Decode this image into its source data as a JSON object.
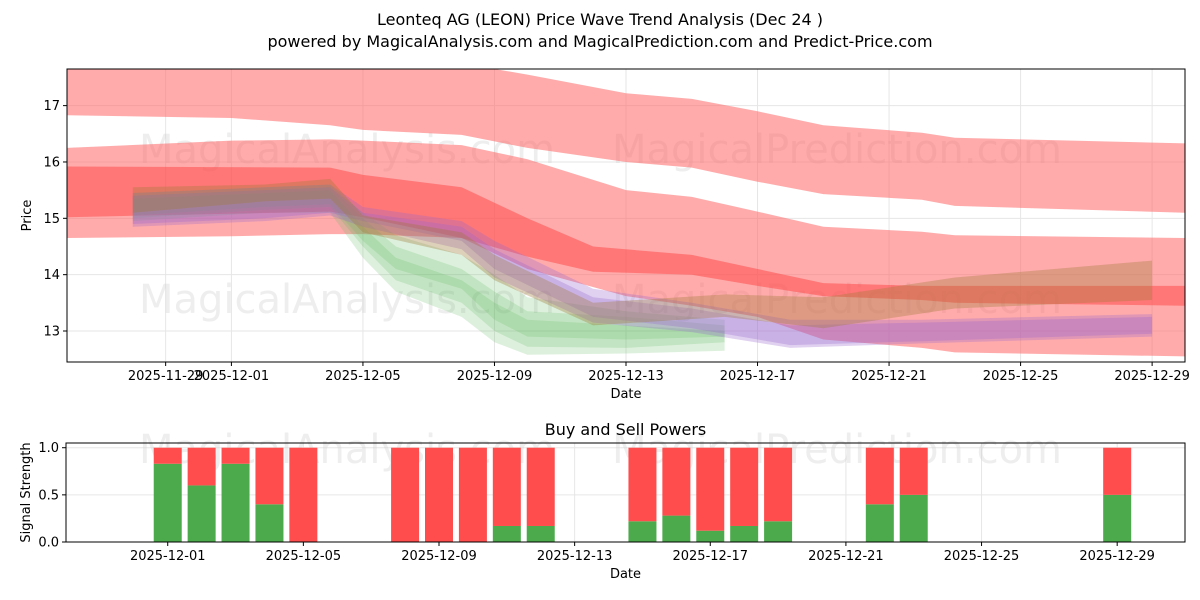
{
  "figure": {
    "title_line1": "Leonteq AG (LEON) Price Wave Trend Analysis (Dec 24 )",
    "title_line2": "powered by MagicalAnalysis.com and MagicalPrediction.com and Predict-Price.com",
    "watermarks": [
      "MagicalAnalysis.com",
      "MagicalPrediction.com"
    ]
  },
  "chart_data": [
    {
      "type": "area",
      "title": "",
      "xlabel": "Date",
      "ylabel": "Price",
      "x_range": [
        "2025-11-26",
        "2025-12-30"
      ],
      "ylim": [
        12.45,
        17.65
      ],
      "grid": true,
      "x_ticks": [
        {
          "date": "2025-11-29",
          "label": "2025-11-29"
        },
        {
          "date": "2025-12-01",
          "label": "2025-12-01"
        },
        {
          "date": "2025-12-05",
          "label": "2025-12-05"
        },
        {
          "date": "2025-12-09",
          "label": "2025-12-09"
        },
        {
          "date": "2025-12-13",
          "label": "2025-12-13"
        },
        {
          "date": "2025-12-17",
          "label": "2025-12-17"
        },
        {
          "date": "2025-12-21",
          "label": "2025-12-21"
        },
        {
          "date": "2025-12-25",
          "label": "2025-12-25"
        },
        {
          "date": "2025-12-29",
          "label": "2025-12-29"
        }
      ],
      "y_ticks": [
        {
          "value": 13,
          "label": "13"
        },
        {
          "value": 14,
          "label": "14"
        },
        {
          "value": 15,
          "label": "15"
        },
        {
          "value": 16,
          "label": "16"
        },
        {
          "value": 17,
          "label": "17"
        }
      ],
      "bands": [
        {
          "name": "upper-band",
          "color": "#ff6666",
          "opacity": 0.55,
          "x": [
            "2025-11-26",
            "2025-12-01",
            "2025-12-04",
            "2025-12-05",
            "2025-12-08",
            "2025-12-10",
            "2025-12-13",
            "2025-12-15",
            "2025-12-17",
            "2025-12-19",
            "2025-12-22",
            "2025-12-23",
            "2025-12-30"
          ],
          "upper": [
            17.75,
            17.75,
            17.75,
            17.75,
            17.75,
            17.55,
            17.22,
            17.12,
            16.9,
            16.65,
            16.52,
            16.43,
            16.33
          ],
          "lower": [
            16.83,
            16.78,
            16.65,
            16.57,
            16.48,
            16.25,
            16.0,
            15.9,
            15.65,
            15.43,
            15.33,
            15.22,
            15.1
          ]
        },
        {
          "name": "middle-band",
          "color": "#ff6666",
          "opacity": 0.55,
          "x": [
            "2025-11-26",
            "2025-12-01",
            "2025-12-04",
            "2025-12-05",
            "2025-12-08",
            "2025-12-10",
            "2025-12-13",
            "2025-12-15",
            "2025-12-17",
            "2025-12-19",
            "2025-12-22",
            "2025-12-23",
            "2025-12-30"
          ],
          "upper": [
            16.25,
            16.38,
            16.4,
            16.38,
            16.3,
            16.05,
            15.5,
            15.38,
            15.12,
            14.85,
            14.76,
            14.7,
            14.65
          ],
          "lower": [
            14.65,
            14.68,
            14.72,
            14.72,
            14.65,
            14.1,
            13.62,
            13.45,
            13.25,
            12.85,
            12.7,
            12.62,
            12.55
          ]
        },
        {
          "name": "red-trend-band",
          "color": "#ff4444",
          "opacity": 0.5,
          "x": [
            "2025-11-26",
            "2025-12-04",
            "2025-12-05",
            "2025-12-08",
            "2025-12-10",
            "2025-12-12",
            "2025-12-15",
            "2025-12-17",
            "2025-12-19",
            "2025-12-22",
            "2025-12-23",
            "2025-12-30"
          ],
          "upper": [
            15.92,
            15.9,
            15.77,
            15.55,
            15.0,
            14.5,
            14.35,
            14.1,
            13.85,
            13.8,
            13.8,
            13.8
          ],
          "lower": [
            15.02,
            15.12,
            15.02,
            14.65,
            14.32,
            14.05,
            14.0,
            13.8,
            13.62,
            13.55,
            13.5,
            13.45
          ]
        },
        {
          "name": "green-scenario-1",
          "color": "#66bb66",
          "opacity": 0.22,
          "x": [
            "2025-11-28",
            "2025-12-02",
            "2025-12-04",
            "2025-12-05",
            "2025-12-06",
            "2025-12-08",
            "2025-12-09",
            "2025-12-10",
            "2025-12-13",
            "2025-12-16"
          ],
          "upper": [
            15.4,
            15.5,
            15.55,
            15.0,
            14.5,
            14.1,
            13.7,
            13.35,
            13.25,
            13.1
          ],
          "lower": [
            15.0,
            15.15,
            15.2,
            14.5,
            13.9,
            13.5,
            13.0,
            12.72,
            12.7,
            12.8
          ]
        },
        {
          "name": "green-scenario-2",
          "color": "#66bb66",
          "opacity": 0.22,
          "x": [
            "2025-11-28",
            "2025-12-02",
            "2025-12-04",
            "2025-12-05",
            "2025-12-06",
            "2025-12-08",
            "2025-12-09",
            "2025-12-10",
            "2025-12-13",
            "2025-12-16"
          ],
          "upper": [
            15.35,
            15.45,
            15.5,
            14.85,
            14.3,
            13.9,
            13.5,
            13.2,
            13.1,
            13.0
          ],
          "lower": [
            14.95,
            15.1,
            15.1,
            14.3,
            13.7,
            13.25,
            12.8,
            12.58,
            12.6,
            12.65
          ]
        },
        {
          "name": "green-scenario-3",
          "color": "#66bb66",
          "opacity": 0.22,
          "x": [
            "2025-11-28",
            "2025-12-02",
            "2025-12-04",
            "2025-12-05",
            "2025-12-06",
            "2025-12-08",
            "2025-12-09",
            "2025-12-10",
            "2025-12-13",
            "2025-12-16"
          ],
          "upper": [
            15.45,
            15.55,
            15.6,
            15.1,
            14.7,
            14.35,
            14.0,
            13.6,
            13.35,
            13.2
          ],
          "lower": [
            15.05,
            15.2,
            15.25,
            14.6,
            14.1,
            13.75,
            13.2,
            12.9,
            12.85,
            12.9
          ]
        },
        {
          "name": "purple-scenario-1",
          "color": "#9966cc",
          "opacity": 0.3,
          "x": [
            "2025-11-28",
            "2025-12-02",
            "2025-12-04",
            "2025-12-05",
            "2025-12-08",
            "2025-12-09",
            "2025-12-12",
            "2025-12-15",
            "2025-12-18",
            "2025-12-22",
            "2025-12-29"
          ],
          "upper": [
            15.45,
            15.55,
            15.6,
            15.2,
            14.95,
            14.6,
            13.75,
            13.5,
            13.2,
            13.2,
            13.3
          ],
          "lower": [
            14.9,
            15.0,
            15.1,
            14.95,
            14.6,
            14.1,
            13.25,
            13.05,
            12.75,
            12.82,
            12.95
          ]
        },
        {
          "name": "purple-scenario-2",
          "color": "#9966cc",
          "opacity": 0.3,
          "x": [
            "2025-11-28",
            "2025-12-02",
            "2025-12-04",
            "2025-12-05",
            "2025-12-08",
            "2025-12-09",
            "2025-12-12",
            "2025-12-15",
            "2025-12-18",
            "2025-12-22",
            "2025-12-29"
          ],
          "upper": [
            15.4,
            15.5,
            15.55,
            15.1,
            14.85,
            14.45,
            13.6,
            13.4,
            13.1,
            13.15,
            13.25
          ],
          "lower": [
            14.85,
            14.95,
            15.05,
            14.85,
            14.45,
            13.95,
            13.15,
            12.98,
            12.7,
            12.78,
            12.9
          ]
        },
        {
          "name": "brown-scenario",
          "color": "#a07a3a",
          "opacity": 0.35,
          "x": [
            "2025-11-28",
            "2025-12-02",
            "2025-12-04",
            "2025-12-05",
            "2025-12-08",
            "2025-12-09",
            "2025-12-12",
            "2025-12-16",
            "2025-12-19",
            "2025-12-23",
            "2025-12-29"
          ],
          "upper": [
            15.55,
            15.6,
            15.7,
            15.05,
            14.75,
            14.35,
            13.5,
            13.65,
            13.6,
            13.95,
            14.25
          ],
          "lower": [
            15.1,
            15.3,
            15.35,
            14.75,
            14.35,
            13.9,
            13.1,
            13.25,
            13.05,
            13.4,
            13.55
          ]
        }
      ]
    },
    {
      "type": "bar",
      "title": "Buy and Sell Powers",
      "xlabel": "Date",
      "ylabel": "Signal Strength",
      "x_range": [
        "2025-11-28",
        "2025-12-31"
      ],
      "ylim": [
        0,
        1.05
      ],
      "grid": true,
      "x_ticks": [
        {
          "date": "2025-12-01",
          "label": "2025-12-01"
        },
        {
          "date": "2025-12-05",
          "label": "2025-12-05"
        },
        {
          "date": "2025-12-09",
          "label": "2025-12-09"
        },
        {
          "date": "2025-12-13",
          "label": "2025-12-13"
        },
        {
          "date": "2025-12-17",
          "label": "2025-12-17"
        },
        {
          "date": "2025-12-21",
          "label": "2025-12-21"
        },
        {
          "date": "2025-12-25",
          "label": "2025-12-25"
        },
        {
          "date": "2025-12-29",
          "label": "2025-12-29"
        }
      ],
      "y_ticks": [
        {
          "value": 0.0,
          "label": "0.0"
        },
        {
          "value": 0.5,
          "label": "0.5"
        },
        {
          "value": 1.0,
          "label": "1.0"
        }
      ],
      "buy_color": "#4caa4c",
      "sell_color": "#ff4c4c",
      "series": [
        {
          "name": "Buy",
          "color": "#4caa4c"
        },
        {
          "name": "Sell",
          "color": "#ff4c4c"
        }
      ],
      "dates": [
        "2025-12-01",
        "2025-12-02",
        "2025-12-03",
        "2025-12-04",
        "2025-12-05",
        "2025-12-08",
        "2025-12-09",
        "2025-12-10",
        "2025-12-11",
        "2025-12-12",
        "2025-12-15",
        "2025-12-16",
        "2025-12-17",
        "2025-12-18",
        "2025-12-19",
        "2025-12-22",
        "2025-12-23",
        "2025-12-29"
      ],
      "buy": [
        0.83,
        0.6,
        0.83,
        0.4,
        0.0,
        0.0,
        0.0,
        0.0,
        0.17,
        0.17,
        0.22,
        0.28,
        0.12,
        0.17,
        0.22,
        0.4,
        0.5,
        0.5
      ],
      "sell": [
        0.17,
        0.4,
        0.17,
        0.6,
        1.0,
        1.0,
        1.0,
        1.0,
        0.83,
        0.83,
        0.78,
        0.72,
        0.88,
        0.83,
        0.78,
        0.6,
        0.5,
        0.5
      ]
    }
  ]
}
